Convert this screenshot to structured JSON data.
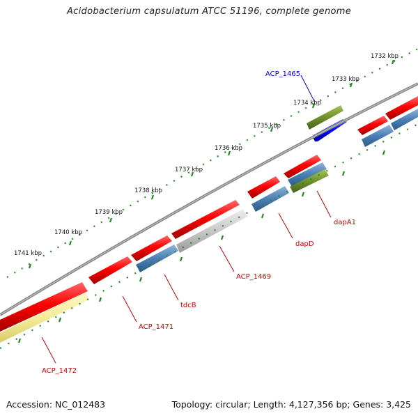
{
  "title": "Acidobacterium capsulatum ATCC 51196, complete genome",
  "footer": {
    "accession": "Accession: NC_012483",
    "topology": "Topology: circular; Length: 4,127,356 bp; Genes: 3,425"
  },
  "colors": {
    "cds": "#ff0000",
    "gene": "#4a7fb5",
    "misc_feature": "#cccccc",
    "rna": "#6f8f2a",
    "highlight": "#0000ff",
    "pseudo": "#f5ec9a",
    "backbone": "#808080",
    "ticks": "#228b22",
    "label_red": "#cc0000",
    "label_blue": "#0000cc"
  },
  "scale": {
    "tick_labels": [
      "1732 kbp",
      "1733 kbp",
      "1734 kbp",
      "1735 kbp",
      "1736 kbp",
      "1737 kbp",
      "1738 kbp",
      "1739 kbp",
      "1740 kbp",
      "1741 kbp"
    ]
  },
  "gene_labels": [
    {
      "name": "ACP_1465",
      "color": "label_blue"
    },
    {
      "name": "dapA1",
      "color": "label_red"
    },
    {
      "name": "dapD",
      "color": "label_red"
    },
    {
      "name": "ACP_1469",
      "color": "label_red"
    },
    {
      "name": "tdcB",
      "color": "label_red"
    },
    {
      "name": "ACP_1471",
      "color": "label_red"
    },
    {
      "name": "ACP_1472",
      "color": "label_red"
    }
  ]
}
